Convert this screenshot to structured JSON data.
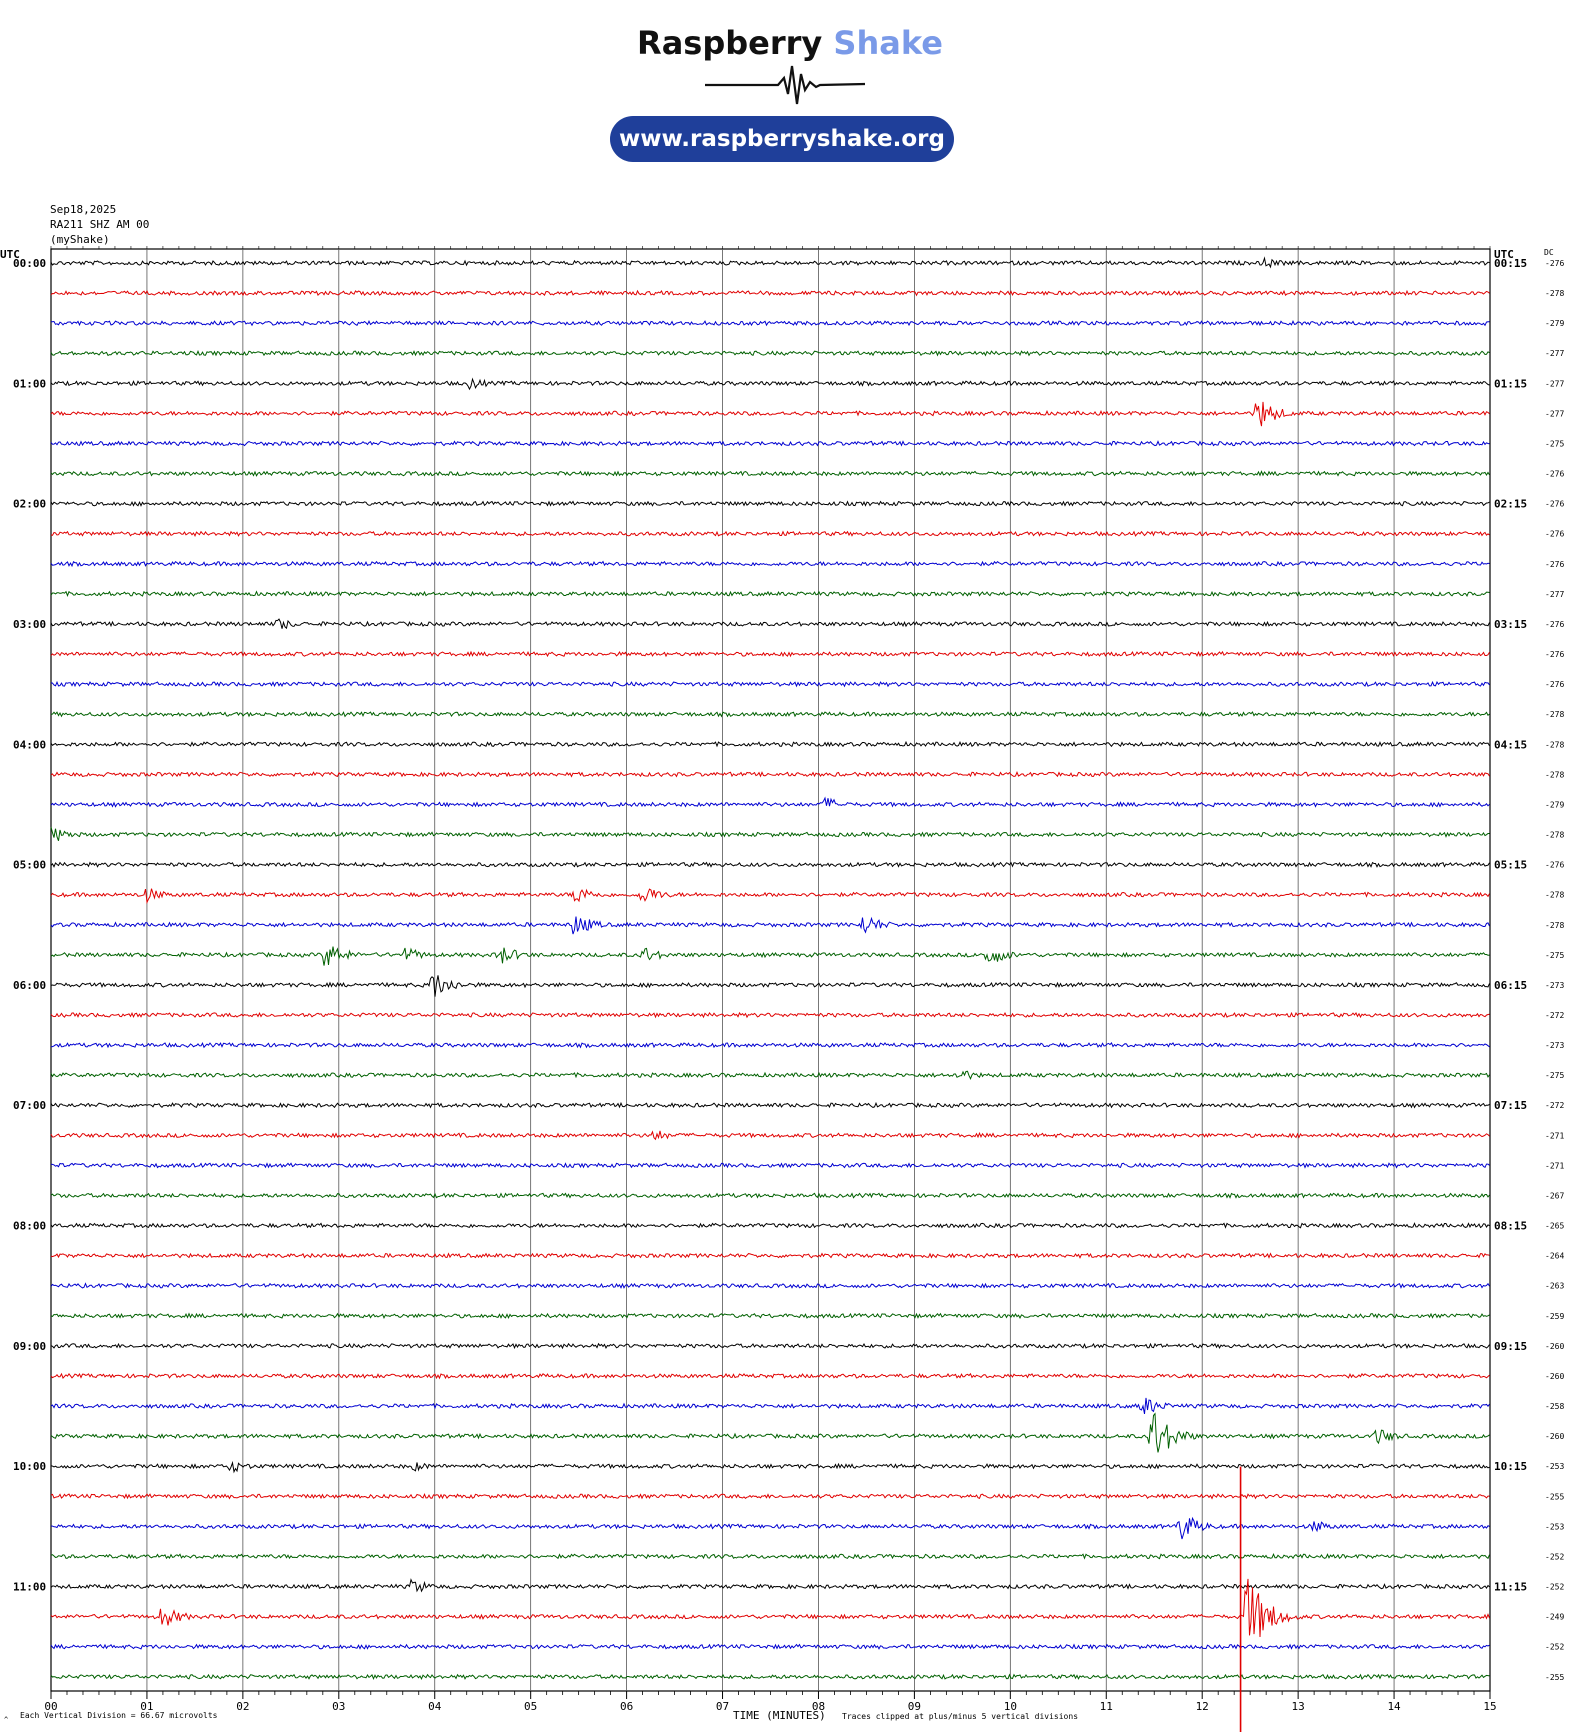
{
  "logo": {
    "brand_word1": "Raspberry",
    "brand_word2": "Shake",
    "url": "www.raspberryshake.org",
    "accent": "#7a9ae8",
    "pill_color": "#1f3f9a"
  },
  "header": {
    "date": "Sep18,2025",
    "station": "RA211 SHZ AM 00",
    "source": "(myShake)"
  },
  "chart_data": {
    "type": "line",
    "title": "",
    "xlabel": "TIME (MINUTES)",
    "left_axis_title": "UTC",
    "right_axis_title": "UTC",
    "dc_header": "DC",
    "x_ticks": [
      "00",
      "01",
      "02",
      "03",
      "04",
      "05",
      "06",
      "07",
      "08",
      "09",
      "10",
      "11",
      "12",
      "13",
      "14",
      "15"
    ],
    "xlim": [
      0,
      15
    ],
    "left_labels": [
      "00:00",
      "01:00",
      "02:00",
      "03:00",
      "04:00",
      "05:00",
      "06:00",
      "07:00",
      "08:00",
      "09:00",
      "10:00",
      "11:00"
    ],
    "right_labels": [
      "00:15",
      "01:15",
      "02:15",
      "03:15",
      "04:15",
      "05:15",
      "06:15",
      "07:15",
      "08:15",
      "09:15",
      "10:15",
      "11:15"
    ],
    "dc_values": [
      "-276",
      "-278",
      "-279",
      "-277",
      "-277",
      "-277",
      "-275",
      "-276",
      "-276",
      "-276",
      "-276",
      "-277",
      "-276",
      "-276",
      "-276",
      "-278",
      "-278",
      "-278",
      "-279",
      "-278",
      "-276",
      "-278",
      "-278",
      "-275",
      "-273",
      "-272",
      "-273",
      "-275",
      "-272",
      "-271",
      "-271",
      "-267",
      "-265",
      "-264",
      "-263",
      "-259",
      "-260",
      "-260",
      "-258",
      "-260",
      "-253",
      "-255",
      "-253",
      "-252",
      "-252",
      "-249",
      "-252",
      "-255"
    ],
    "trace_colors": [
      "#000000",
      "#e00000",
      "#0000d0",
      "#006000"
    ],
    "events": [
      {
        "trace": 0,
        "minute": 12.7,
        "amp": 5
      },
      {
        "trace": 4,
        "minute": 4.4,
        "amp": 6
      },
      {
        "trace": 5,
        "minute": 12.6,
        "amp": 16
      },
      {
        "trace": 12,
        "minute": 2.4,
        "amp": 6
      },
      {
        "trace": 18,
        "minute": 8.1,
        "amp": 7
      },
      {
        "trace": 19,
        "minute": 0.05,
        "amp": 8
      },
      {
        "trace": 21,
        "minute": 1.0,
        "amp": 8
      },
      {
        "trace": 21,
        "minute": 5.5,
        "amp": 9
      },
      {
        "trace": 21,
        "minute": 6.2,
        "amp": 9
      },
      {
        "trace": 22,
        "minute": 5.5,
        "amp": 10
      },
      {
        "trace": 22,
        "minute": 8.5,
        "amp": 10
      },
      {
        "trace": 23,
        "minute": 2.9,
        "amp": 12
      },
      {
        "trace": 23,
        "minute": 3.7,
        "amp": 8
      },
      {
        "trace": 23,
        "minute": 4.7,
        "amp": 10
      },
      {
        "trace": 23,
        "minute": 6.2,
        "amp": 8
      },
      {
        "trace": 23,
        "minute": 9.8,
        "amp": 10
      },
      {
        "trace": 24,
        "minute": 4.0,
        "amp": 14
      },
      {
        "trace": 27,
        "minute": 9.5,
        "amp": 6
      },
      {
        "trace": 29,
        "minute": 6.3,
        "amp": 6
      },
      {
        "trace": 38,
        "minute": 11.4,
        "amp": 10
      },
      {
        "trace": 39,
        "minute": 11.5,
        "amp": 28
      },
      {
        "trace": 39,
        "minute": 13.85,
        "amp": 8
      },
      {
        "trace": 40,
        "minute": 1.9,
        "amp": 6
      },
      {
        "trace": 40,
        "minute": 3.8,
        "amp": 5
      },
      {
        "trace": 42,
        "minute": 11.8,
        "amp": 14
      },
      {
        "trace": 42,
        "minute": 13.2,
        "amp": 6
      },
      {
        "trace": 44,
        "minute": 3.8,
        "amp": 7
      },
      {
        "trace": 45,
        "minute": 1.2,
        "amp": 10
      },
      {
        "trace": 45,
        "minute": 12.5,
        "amp": 40
      }
    ],
    "clipped_event": {
      "trace": 45,
      "minute": 12.4
    },
    "footer_left": "Each Vertical Division =   66.67 microvolts",
    "footer_right": "Traces clipped at plus/minus 5 vertical divisions",
    "grid": true
  }
}
